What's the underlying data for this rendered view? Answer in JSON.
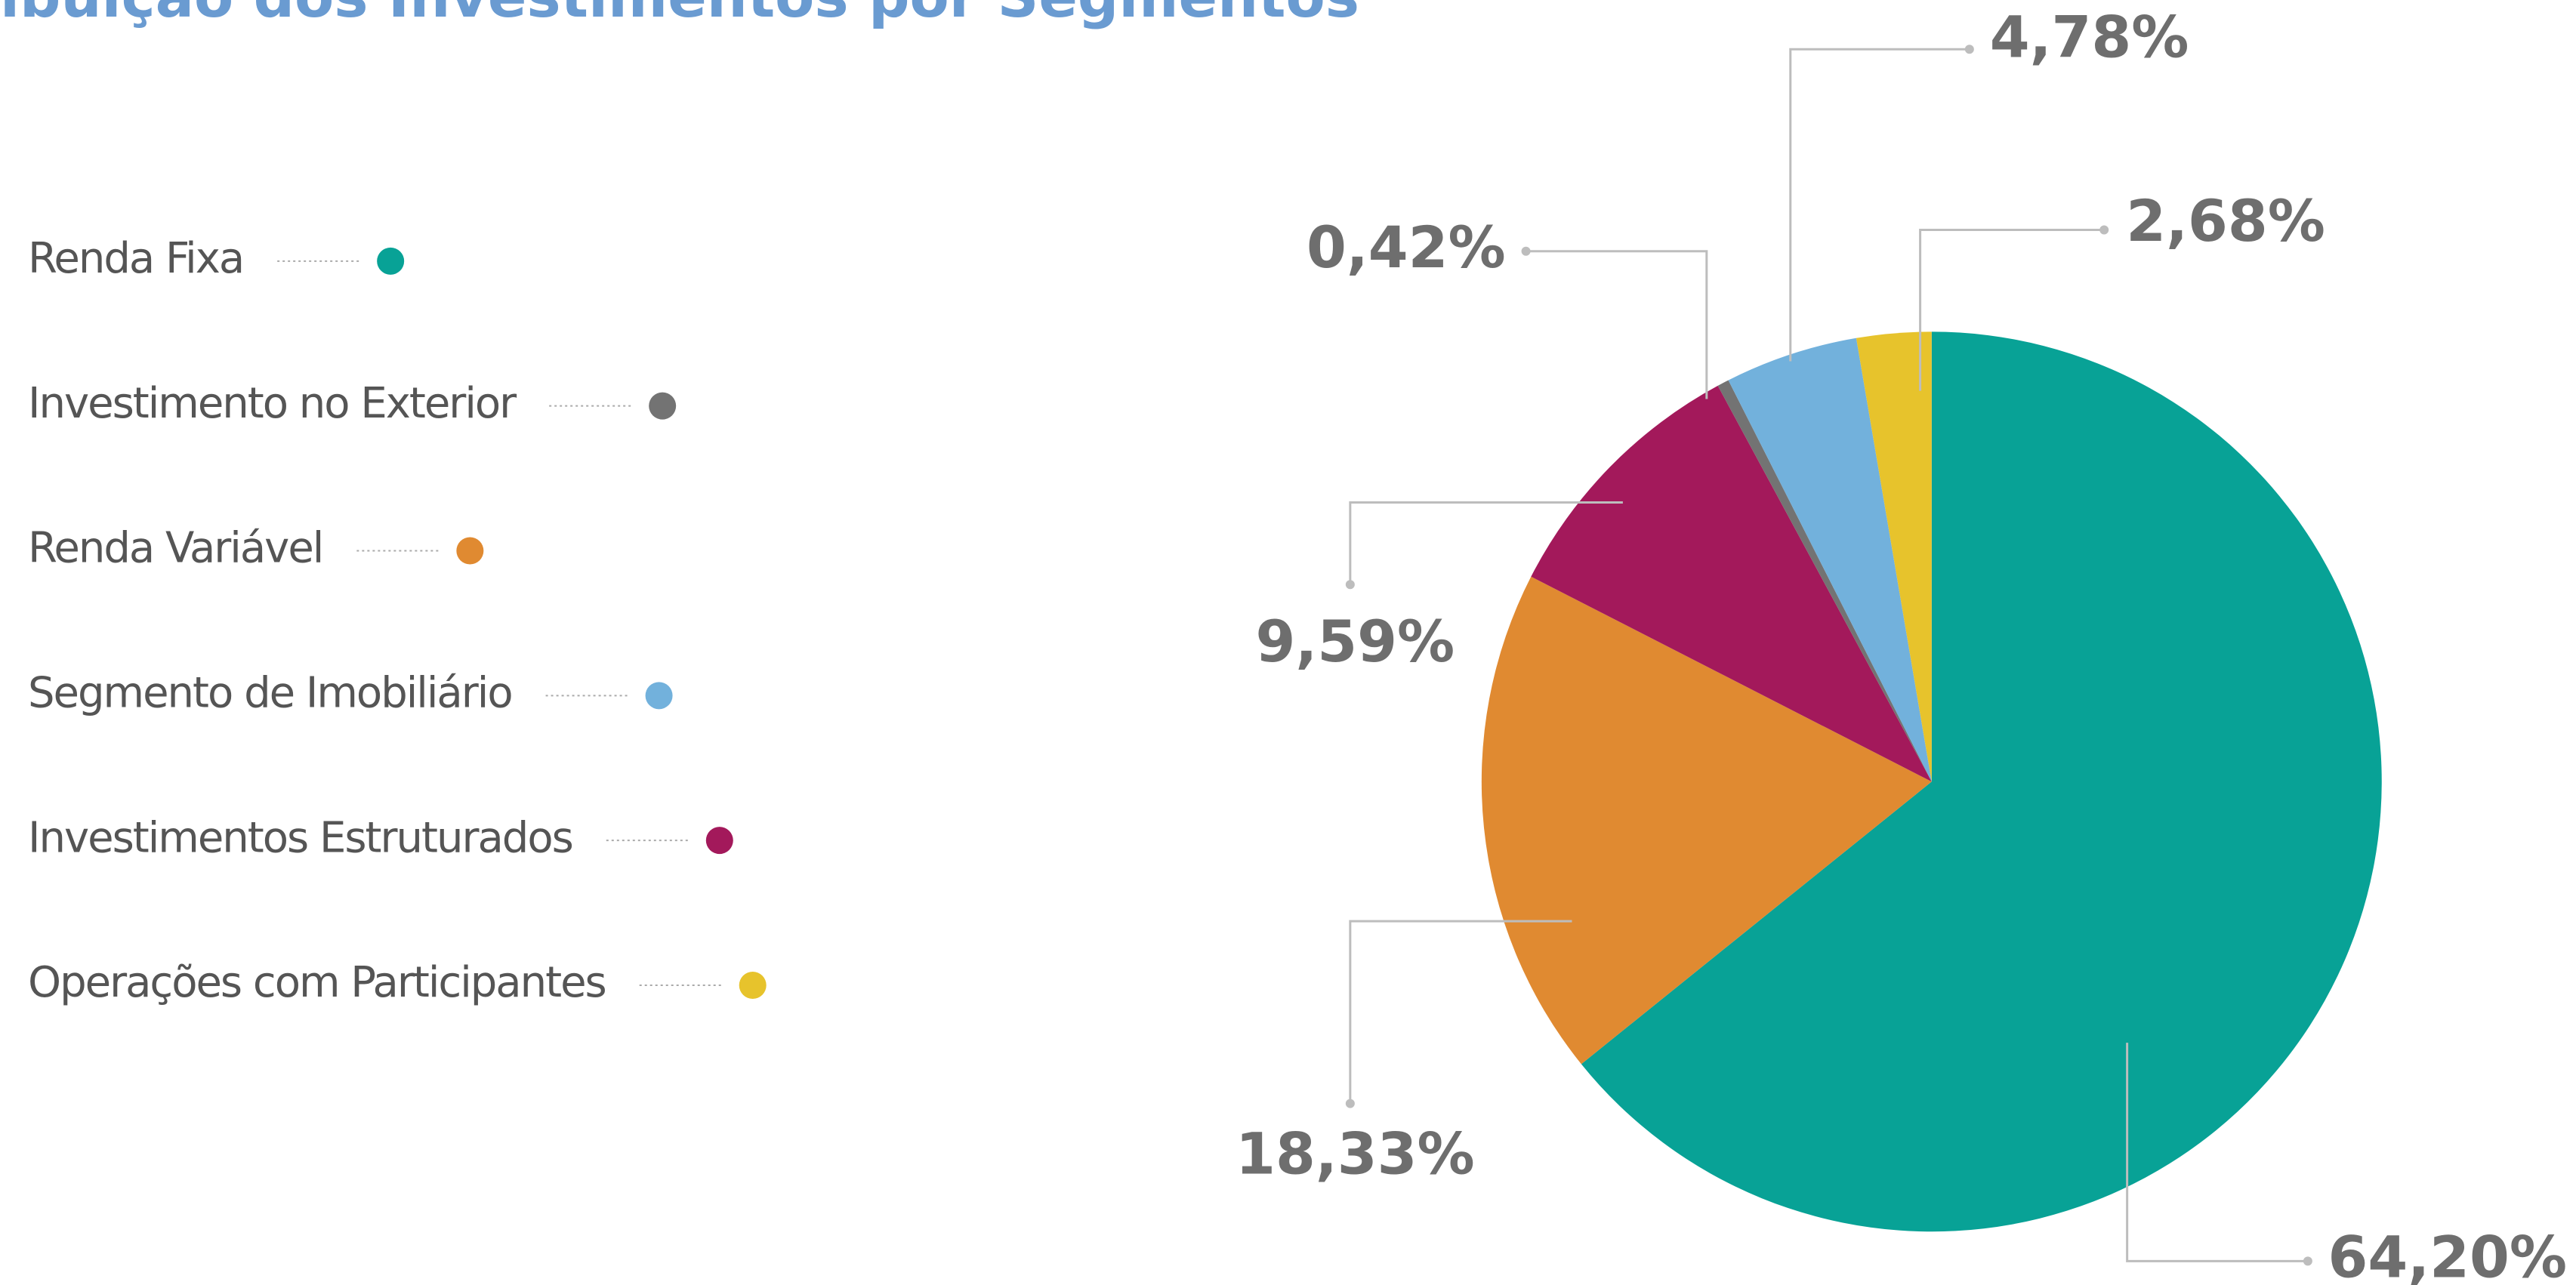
{
  "chart_data": {
    "type": "pie",
    "title": "ibuição dos Investimentos por Segmentos",
    "categories": [
      "Renda Fixa",
      "Renda Variável",
      "Investimentos Estruturados",
      "Investimento no Exterior",
      "Segmento de Imobiliário",
      "Operações com Participantes"
    ],
    "values": [
      64.2,
      18.33,
      9.59,
      0.42,
      4.78,
      2.68
    ],
    "value_labels": [
      "64,20%",
      "18,33%",
      "9,59%",
      "0,42%",
      "4,78%",
      "2,68%"
    ],
    "colors": [
      "#08a296",
      "#e08a31",
      "#a3195b",
      "#737373",
      "#72b1dc",
      "#e7c32c"
    ],
    "legend_order": [
      0,
      3,
      1,
      4,
      2,
      5
    ],
    "legend": "left"
  }
}
